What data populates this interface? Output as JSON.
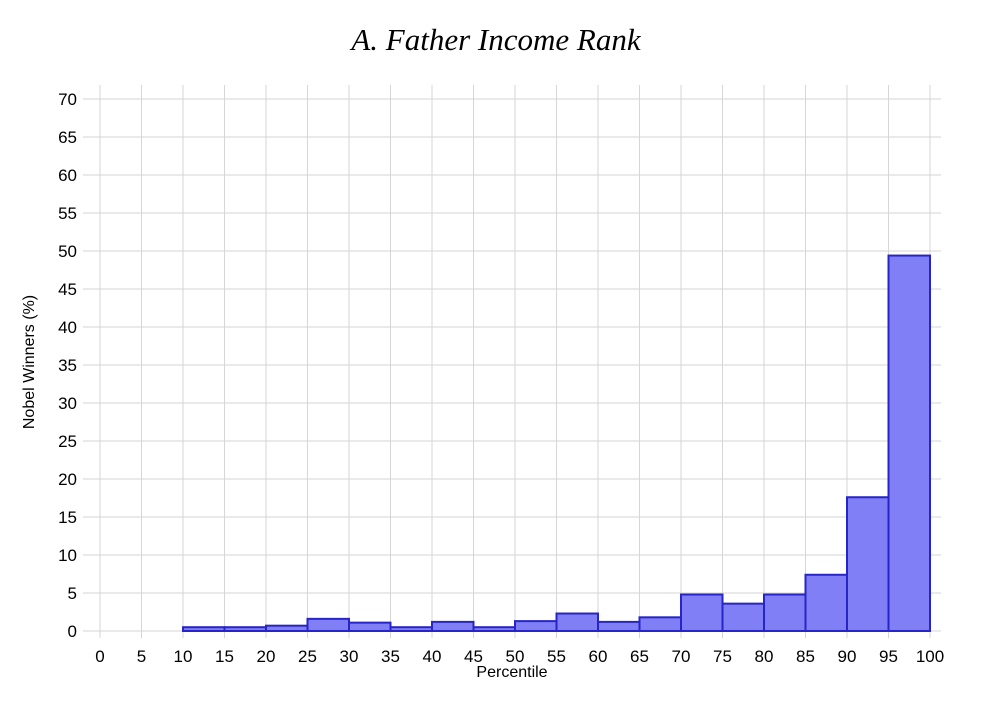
{
  "chart_data": {
    "type": "bar",
    "subtype": "histogram",
    "title": "A. Father Income Rank",
    "xlabel": "Percentile",
    "ylabel": "Nobel Winners (%)",
    "xlim": [
      0,
      100
    ],
    "ylim": [
      0,
      70
    ],
    "xticks": [
      0,
      5,
      10,
      15,
      20,
      25,
      30,
      35,
      40,
      45,
      50,
      55,
      60,
      65,
      70,
      75,
      80,
      85,
      90,
      95,
      100
    ],
    "yticks": [
      0,
      5,
      10,
      15,
      20,
      25,
      30,
      35,
      40,
      45,
      50,
      55,
      60,
      65,
      70
    ],
    "grid": true,
    "legend": null,
    "bin_width": 5,
    "bins": [
      {
        "start": 10,
        "end": 15,
        "value": 0.5
      },
      {
        "start": 15,
        "end": 20,
        "value": 0.5
      },
      {
        "start": 20,
        "end": 25,
        "value": 0.7
      },
      {
        "start": 25,
        "end": 30,
        "value": 1.6
      },
      {
        "start": 30,
        "end": 35,
        "value": 1.1
      },
      {
        "start": 35,
        "end": 40,
        "value": 0.5
      },
      {
        "start": 40,
        "end": 45,
        "value": 1.2
      },
      {
        "start": 45,
        "end": 50,
        "value": 0.5
      },
      {
        "start": 50,
        "end": 55,
        "value": 1.3
      },
      {
        "start": 55,
        "end": 60,
        "value": 2.3
      },
      {
        "start": 60,
        "end": 65,
        "value": 1.2
      },
      {
        "start": 65,
        "end": 70,
        "value": 1.8
      },
      {
        "start": 70,
        "end": 75,
        "value": 4.8
      },
      {
        "start": 75,
        "end": 80,
        "value": 3.6
      },
      {
        "start": 80,
        "end": 85,
        "value": 4.8
      },
      {
        "start": 85,
        "end": 90,
        "value": 7.4
      },
      {
        "start": 90,
        "end": 95,
        "value": 17.6
      },
      {
        "start": 95,
        "end": 100,
        "value": 49.4
      }
    ],
    "style": {
      "bar_fill": "#807ff6",
      "bar_stroke": "#2725c8",
      "grid_color": "#d6d6d6",
      "text_color": "#000000",
      "background": "#ffffff"
    }
  }
}
